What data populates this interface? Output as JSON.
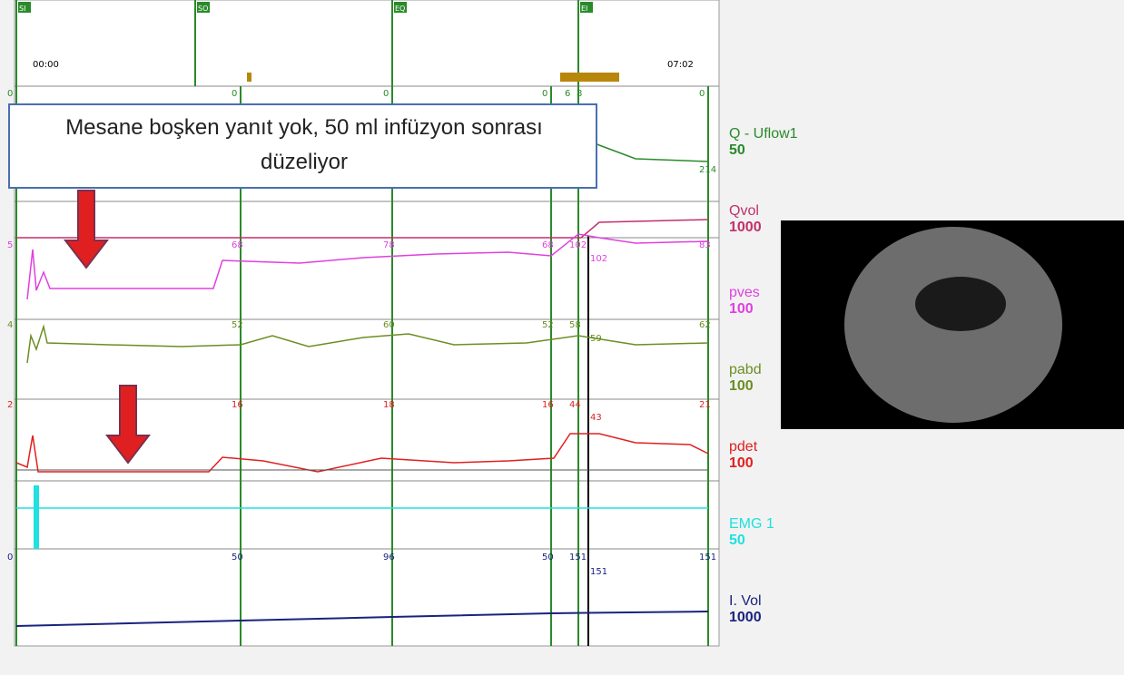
{
  "markers": [
    "SI",
    "SO",
    "EQ",
    "EI"
  ],
  "times": [
    "00:00",
    "07:02"
  ],
  "annotation": "Mesane boşken yanıt yok, 50 ml infüzyon sonrası düzeliyor",
  "channels": [
    {
      "name": "Q - Uflow1",
      "scale": "50",
      "readings": [
        "0",
        "0",
        "0",
        "0",
        "6",
        "8",
        "0"
      ],
      "extra": "214"
    },
    {
      "name": "Qvol",
      "scale": "1000",
      "readings": []
    },
    {
      "name": "pves",
      "scale": "100",
      "readings": [
        "5",
        "68",
        "78",
        "68",
        "102",
        "83"
      ],
      "extra": "102"
    },
    {
      "name": "pabd",
      "scale": "100",
      "readings": [
        "4",
        "52",
        "60",
        "52",
        "58",
        "62"
      ],
      "extra": "59"
    },
    {
      "name": "pdet",
      "scale": "100",
      "readings": [
        "2",
        "16",
        "18",
        "16",
        "44",
        "21"
      ],
      "extra": "43"
    },
    {
      "name": "EMG 1",
      "scale": "50",
      "readings": []
    },
    {
      "name": "I. Vol",
      "scale": "1000",
      "readings": [
        "0",
        "50",
        "96",
        "50",
        "151",
        "151"
      ],
      "extra": "151"
    }
  ]
}
